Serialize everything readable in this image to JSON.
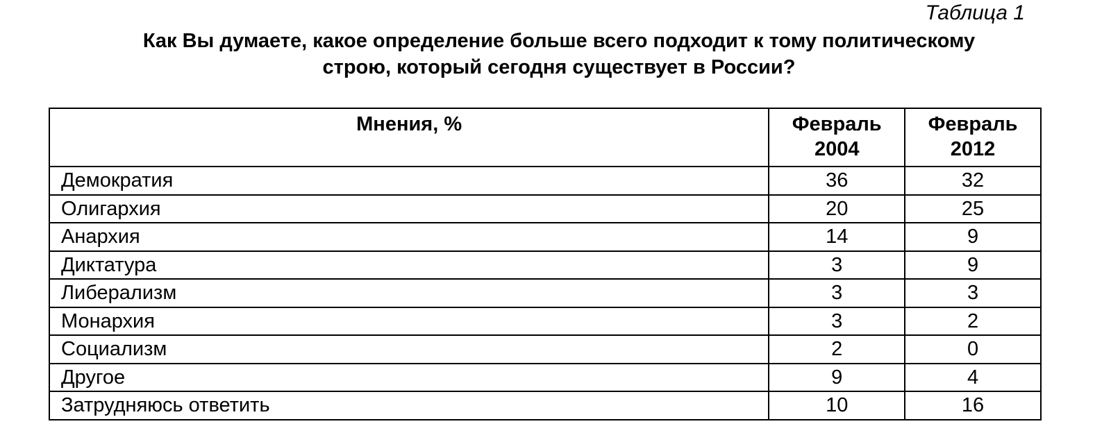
{
  "table_number": "Таблица 1",
  "title": "Как Вы думаете, какое определение больше всего подходит к тому политическому строю, который сегодня существует в России?",
  "table": {
    "headers": [
      "Мнения, %",
      "Февраль 2004",
      "Февраль 2012"
    ],
    "rows": [
      {
        "label": "Демократия",
        "v2004": "36",
        "v2012": "32"
      },
      {
        "label": "Олигархия",
        "v2004": "20",
        "v2012": "25"
      },
      {
        "label": "Анархия",
        "v2004": "14",
        "v2012": "9"
      },
      {
        "label": "Диктатура",
        "v2004": "3",
        "v2012": "9"
      },
      {
        "label": "Либерализм",
        "v2004": "3",
        "v2012": "3"
      },
      {
        "label": "Монархия",
        "v2004": "3",
        "v2012": "2"
      },
      {
        "label": "Социализм",
        "v2004": "2",
        "v2012": "0"
      },
      {
        "label": "Другое",
        "v2004": "9",
        "v2012": "4"
      },
      {
        "label": "Затрудняюсь ответить",
        "v2004": "10",
        "v2012": "16"
      }
    ]
  }
}
